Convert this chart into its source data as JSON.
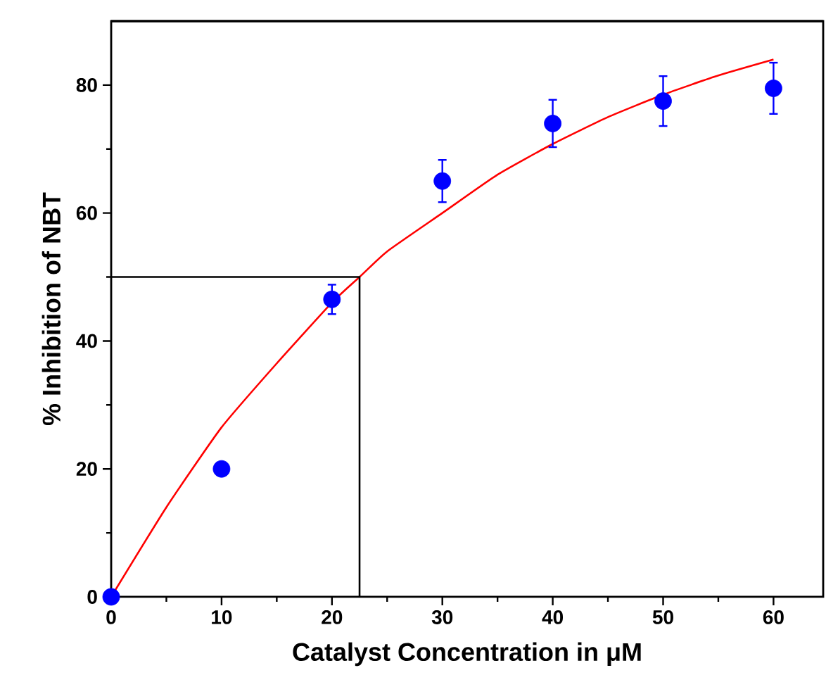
{
  "chart_data": {
    "type": "scatter",
    "xlabel": "Catalyst Concentration in μM",
    "ylabel": "% Inhibition of NBT",
    "xlim": [
      0,
      64.5
    ],
    "ylim": [
      0,
      90
    ],
    "xticks": [
      0,
      10,
      20,
      30,
      40,
      50,
      60
    ],
    "yticks": [
      0,
      20,
      40,
      60,
      80
    ],
    "grid": false,
    "series": [
      {
        "type": "line",
        "color": "#ff0000",
        "x": [
          0,
          5,
          10,
          15,
          20,
          22.5,
          25,
          30,
          35,
          40,
          45,
          50,
          55,
          60
        ],
        "values": [
          0,
          14,
          26.5,
          36.5,
          46,
          50,
          54,
          60,
          66,
          70.8,
          75,
          78.5,
          81.5,
          84
        ]
      },
      {
        "type": "line",
        "color": "#000000",
        "x": [
          0,
          22.5,
          22.5
        ],
        "values": [
          50,
          50,
          0
        ]
      },
      {
        "color": "#0000ff",
        "marker": "circle",
        "x": [
          0,
          10,
          20,
          30,
          40,
          50,
          60
        ],
        "values": [
          0,
          20,
          46.5,
          65,
          74,
          77.5,
          79.5
        ],
        "errors": [
          null,
          null,
          2.3,
          3.3,
          3.7,
          3.9,
          4
        ]
      }
    ]
  }
}
